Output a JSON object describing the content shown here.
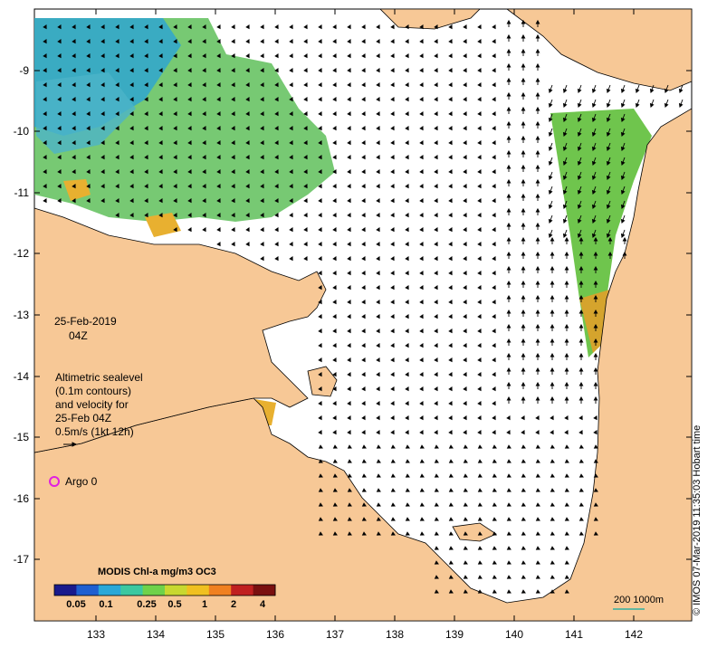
{
  "map": {
    "date": "25-Feb-2019",
    "time": "04Z",
    "altimetry_lines": [
      "Altimetric sealevel",
      "(0.1m contours)",
      "and velocity for",
      "25-Feb 04Z",
      "0.5m/s (1kt 12h)"
    ],
    "argo_label": "Argo 0",
    "credit": "© IMOS 07-Mar-2019 11:35:03 Hobart time",
    "colorbar_title": "MODIS Chl-a mg/m3 OC3",
    "colorbar_ticks": [
      "0.05",
      "0.1",
      "0.25",
      "0.5",
      "1",
      "2",
      "4"
    ],
    "scale_label": "200  1000m",
    "x_ticks": [
      "133",
      "134",
      "135",
      "136",
      "137",
      "138",
      "139",
      "140",
      "141",
      "142"
    ],
    "y_ticks": [
      "-9",
      "-10",
      "-11",
      "-12",
      "-13",
      "-14",
      "-15",
      "-16",
      "-17"
    ],
    "colors": {
      "land": "#f7c896",
      "ocean": "#ffffff",
      "chl_low": "#2c8ed0",
      "chl_mid": "#7ccf3a",
      "chl_high": "#e0a82a",
      "argo": "#e020e0"
    },
    "colorbar_colors": [
      "#1a1a8c",
      "#1f5fd0",
      "#2aa8d8",
      "#3cc8a0",
      "#6fd24a",
      "#c8d830",
      "#f0c020",
      "#f08020",
      "#c02020",
      "#7a1010"
    ]
  }
}
